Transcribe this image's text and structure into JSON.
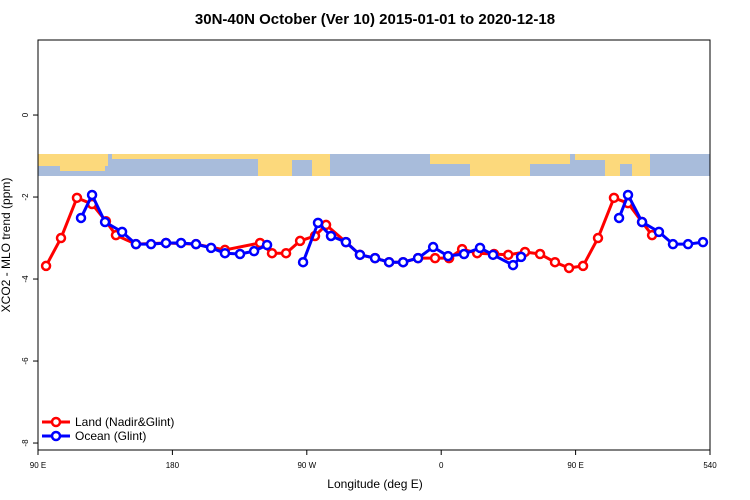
{
  "chart_data": {
    "type": "line",
    "title": "30N-40N October (Ver 10)   2015-01-01 to 2020-12-18",
    "x_label": "Longitude (deg E)",
    "y_label": "XCO2 - MLO trend (ppm)",
    "xlim": [
      90,
      540
    ],
    "xticks": [
      {
        "value": 90,
        "label": "90 E"
      },
      180,
      {
        "value": 270,
        "label": "90 W"
      },
      {
        "value": 360,
        "label": "0"
      },
      {
        "value": 450,
        "label": "90 E"
      },
      540
    ],
    "ylim": [
      -8.17,
      1.83
    ],
    "yticks": [
      0,
      -2,
      -4,
      -6,
      -8
    ],
    "legend": "bottom-left",
    "series": [
      {
        "name": "Land (Nadir&Glint)",
        "color": "#ff0000",
        "x": [
          95.4,
          105.4,
          116.1,
          126.2,
          135.5,
          142.2,
          155.6,
          175.7,
          195.8,
          215.2,
          238.7,
          246.7,
          256.1,
          265.5,
          275.5,
          282.9,
          296.2,
          305.6,
          315.7,
          325.1,
          334.5,
          344.5,
          355.9,
          365.3,
          374.0,
          384.1,
          395.4,
          404.9,
          416.1,
          426.2,
          436.2,
          445.6,
          455.0,
          465.0,
          475.7,
          485.1,
          494.5,
          501.2
        ],
        "values": [
          -3.68,
          -3.0,
          -2.02,
          -2.17,
          -2.59,
          -2.93,
          -3.15,
          -3.12,
          -3.15,
          -3.29,
          -3.12,
          -3.37,
          -3.37,
          -3.07,
          -2.95,
          -2.68,
          -3.1,
          -3.41,
          -3.49,
          -3.59,
          -3.59,
          -3.49,
          -3.49,
          -3.49,
          -3.27,
          -3.37,
          -3.39,
          -3.41,
          -3.34,
          -3.39,
          -3.59,
          -3.73,
          -3.68,
          -3.0,
          -2.02,
          -2.15,
          -2.61,
          -2.93
        ]
      },
      {
        "name": "Ocean (Glint)",
        "color": "#0000ff",
        "x": [
          118.8,
          126.2,
          134.9,
          146.3,
          155.6,
          165.7,
          175.7,
          185.8,
          195.8,
          205.9,
          215.2,
          225.3,
          234.7,
          243.4,
          null,
          267.5,
          277.5,
          286.2,
          296.2,
          305.6,
          315.7,
          325.1,
          334.5,
          344.5,
          354.6,
          364.6,
          375.3,
          386.0,
          394.7,
          408.1,
          413.5,
          null,
          479.1,
          485.1,
          494.5,
          505.8,
          515.2,
          525.3,
          535.3
        ],
        "values": [
          -2.51,
          -1.95,
          -2.61,
          -2.85,
          -3.15,
          -3.15,
          -3.12,
          -3.12,
          -3.15,
          -3.24,
          -3.37,
          -3.39,
          -3.32,
          -3.17,
          null,
          -3.59,
          -2.63,
          -2.95,
          -3.1,
          -3.41,
          -3.49,
          -3.59,
          -3.59,
          -3.49,
          -3.22,
          -3.44,
          -3.39,
          -3.24,
          -3.41,
          -3.66,
          -3.46,
          null,
          -2.51,
          -1.95,
          -2.61,
          -2.85,
          -3.15,
          -3.15,
          -3.1
        ]
      }
    ]
  }
}
